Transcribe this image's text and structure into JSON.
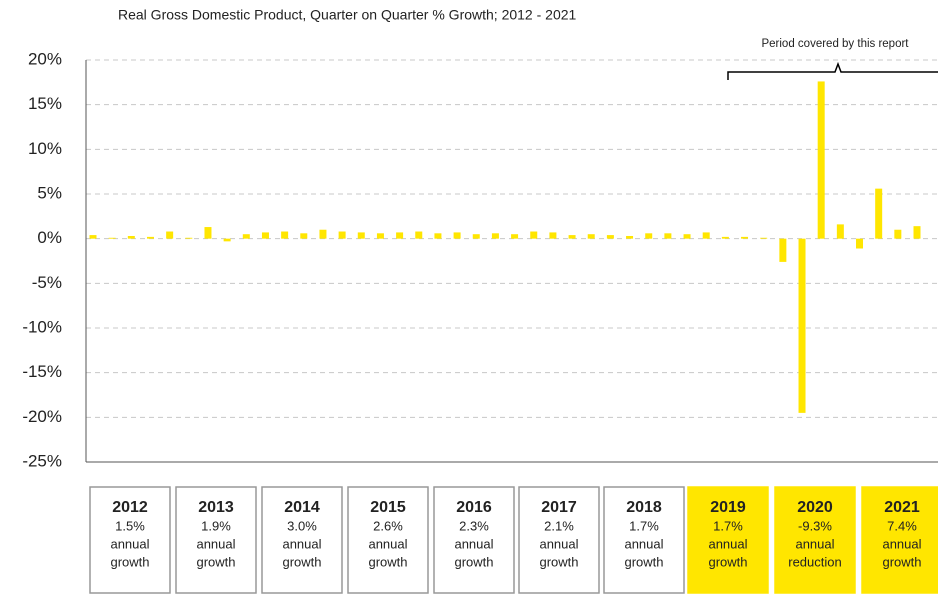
{
  "chart_data": {
    "type": "bar",
    "title": "Real Gross Domestic Product, Quarter on Quarter % Growth; 2012 - 2021",
    "annotation": "Period covered by this report",
    "categories": [
      null,
      null,
      null,
      null,
      null,
      null,
      null,
      null,
      null,
      null,
      null,
      null,
      null,
      null,
      null,
      null,
      null,
      null,
      null,
      null,
      null,
      null,
      null,
      null,
      null,
      null,
      null,
      null,
      null,
      null,
      null,
      null,
      null,
      null,
      null,
      null,
      null,
      null,
      null,
      null,
      null,
      null,
      null,
      null
    ],
    "values": [
      0.4,
      0.1,
      0.3,
      0.2,
      0.8,
      0.1,
      1.3,
      -0.3,
      0.5,
      0.7,
      0.8,
      0.6,
      1.0,
      0.8,
      0.7,
      0.6,
      0.7,
      0.8,
      0.6,
      0.7,
      0.5,
      0.6,
      0.5,
      0.8,
      0.7,
      0.4,
      0.5,
      0.4,
      0.3,
      0.6,
      0.6,
      0.5,
      0.7,
      0.2,
      0.2,
      0.1,
      -2.6,
      -19.5,
      17.6,
      1.6,
      -1.1,
      5.6,
      1.0,
      1.4
    ],
    "color": "#ffe600",
    "ylim": [
      -25,
      20
    ],
    "yticks": [
      {
        "value": -25,
        "label": "-25%"
      },
      {
        "value": -20,
        "label": "-20%"
      },
      {
        "value": -15,
        "label": "-15%"
      },
      {
        "value": -10,
        "label": "-10%"
      },
      {
        "value": -5,
        "label": "-5%"
      },
      {
        "value": 0,
        "label": "0%"
      },
      {
        "value": 5,
        "label": "5%"
      },
      {
        "value": 10,
        "label": "10%"
      },
      {
        "value": 15,
        "label": "15%"
      },
      {
        "value": 20,
        "label": "20%"
      }
    ],
    "grid": true,
    "year_boxes": [
      {
        "year": "2012",
        "rate": "1.5%",
        "line1": "annual",
        "line2": "growth",
        "highlight": false
      },
      {
        "year": "2013",
        "rate": "1.9%",
        "line1": "annual",
        "line2": "growth",
        "highlight": false
      },
      {
        "year": "2014",
        "rate": "3.0%",
        "line1": "annual",
        "line2": "growth",
        "highlight": false
      },
      {
        "year": "2015",
        "rate": "2.6%",
        "line1": "annual",
        "line2": "growth",
        "highlight": false
      },
      {
        "year": "2016",
        "rate": "2.3%",
        "line1": "annual",
        "line2": "growth",
        "highlight": false
      },
      {
        "year": "2017",
        "rate": "2.1%",
        "line1": "annual",
        "line2": "growth",
        "highlight": false
      },
      {
        "year": "2018",
        "rate": "1.7%",
        "line1": "annual",
        "line2": "growth",
        "highlight": false
      },
      {
        "year": "2019",
        "rate": "1.7%",
        "line1": "annual",
        "line2": "growth",
        "highlight": true
      },
      {
        "year": "2020",
        "rate": "-9.3%",
        "line1": "annual",
        "line2": "reduction",
        "highlight": true
      },
      {
        "year": "2021",
        "rate": "7.4%",
        "line1": "annual",
        "line2": "growth",
        "highlight": true
      }
    ]
  }
}
